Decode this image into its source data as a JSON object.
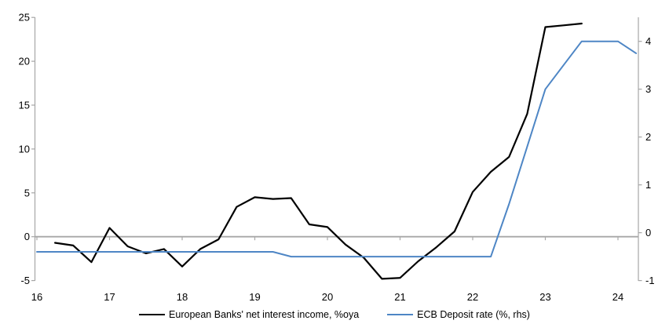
{
  "chart_data": {
    "type": "line",
    "title": "",
    "xlabel": "",
    "ylabel_left": "",
    "ylabel_right": "",
    "grid": "zero-line-only",
    "legend_position": "bottom-center",
    "x_axis": {
      "tick_labels": [
        "16",
        "17",
        "18",
        "19",
        "20",
        "21",
        "22",
        "23",
        "24"
      ],
      "tick_values": [
        16,
        17,
        18,
        19,
        20,
        21,
        22,
        23,
        24
      ],
      "range": [
        15.97,
        24.3
      ]
    },
    "left_axis": {
      "tick_labels": [
        "-5",
        "0",
        "5",
        "10",
        "15",
        "20",
        "25"
      ],
      "tick_values": [
        -5,
        0,
        5,
        10,
        15,
        20,
        25
      ],
      "range": [
        -5,
        25
      ]
    },
    "right_axis": {
      "tick_labels": [
        "-1",
        "0",
        "1",
        "2",
        "3",
        "4"
      ],
      "tick_values": [
        -1,
        0,
        1,
        2,
        3,
        4
      ],
      "range": [
        -1,
        4.5
      ]
    },
    "colors": {
      "axis": "#A6A6A6",
      "zero_line": "#A8A8A8",
      "text": "#000000",
      "series_nii": "#000000",
      "series_ecb": "#4E86C5"
    },
    "series": [
      {
        "name": "European Banks' net interest income, %oya",
        "axis": "left",
        "color": "#000000",
        "stroke_width": 2.2,
        "x": [
          16.25,
          16.5,
          16.75,
          17.0,
          17.25,
          17.5,
          17.75,
          18.0,
          18.25,
          18.5,
          18.75,
          19.0,
          19.25,
          19.5,
          19.75,
          20.0,
          20.25,
          20.5,
          20.75,
          21.0,
          21.25,
          21.5,
          21.75,
          22.0,
          22.25,
          22.5,
          22.75,
          23.0,
          23.25,
          23.5
        ],
        "values": [
          -0.7,
          -1.0,
          -2.9,
          1.0,
          -1.1,
          -1.9,
          -1.4,
          -3.4,
          -1.4,
          -0.3,
          3.4,
          4.5,
          4.3,
          4.4,
          1.4,
          1.1,
          -0.9,
          -2.4,
          -4.8,
          -4.7,
          -2.8,
          -1.2,
          0.6,
          5.1,
          7.4,
          9.1,
          14.0,
          23.9,
          24.1,
          24.3
        ]
      },
      {
        "name": "ECB Deposit rate (%, rhs)",
        "axis": "right",
        "color": "#4E86C5",
        "stroke_width": 2,
        "x": [
          16.0,
          16.25,
          16.5,
          16.75,
          17.0,
          17.25,
          17.5,
          17.75,
          18.0,
          18.25,
          18.5,
          18.75,
          19.0,
          19.25,
          19.5,
          19.75,
          20.0,
          20.25,
          20.5,
          20.75,
          21.0,
          21.25,
          21.5,
          21.75,
          22.0,
          22.25,
          22.5,
          22.75,
          23.0,
          23.25,
          23.5,
          23.75,
          24.0,
          24.25
        ],
        "values": [
          -0.4,
          -0.4,
          -0.4,
          -0.4,
          -0.4,
          -0.4,
          -0.4,
          -0.4,
          -0.4,
          -0.4,
          -0.4,
          -0.4,
          -0.4,
          -0.4,
          -0.5,
          -0.5,
          -0.5,
          -0.5,
          -0.5,
          -0.5,
          -0.5,
          -0.5,
          -0.5,
          -0.5,
          -0.5,
          -0.5,
          0.6,
          1.8,
          3.0,
          3.5,
          4.0,
          4.0,
          4.0,
          3.75
        ]
      }
    ]
  },
  "legend": {
    "items": [
      {
        "label": "European Banks' net interest income, %oya"
      },
      {
        "label": "ECB Deposit rate (%, rhs)"
      }
    ]
  }
}
